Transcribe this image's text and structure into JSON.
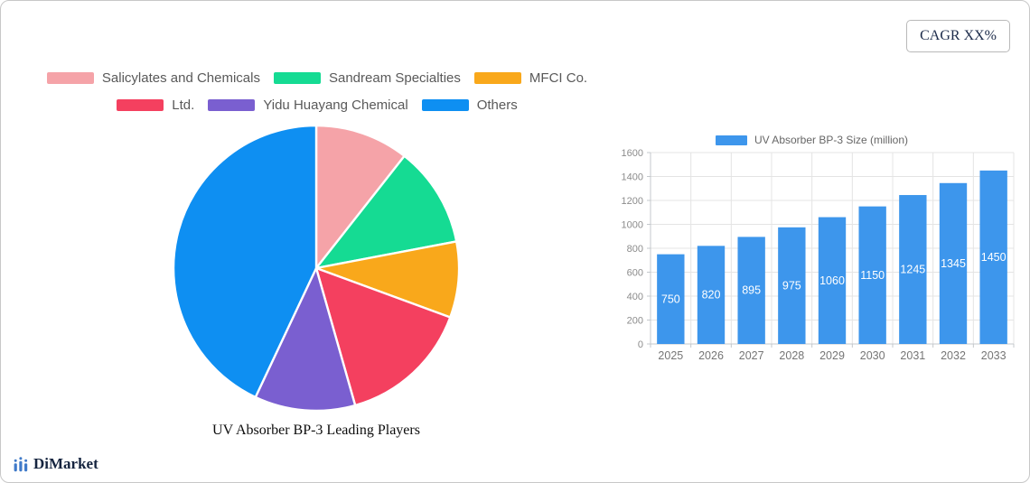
{
  "badge": {
    "cagr_label": "CAGR XX%"
  },
  "brand": {
    "name": "DiMarket"
  },
  "chart_data": [
    {
      "type": "pie",
      "title": "UV Absorber BP-3 Leading Players",
      "legend_position": "top",
      "direction": "clockwise",
      "start_angle_deg": 0,
      "labels": [
        "Salicylates and Chemicals",
        "Sandream Specialties",
        "MFCI Co.",
        "Ltd.",
        "Yidu Huayang Chemical",
        "Others"
      ],
      "values": [
        10.6,
        11.4,
        8.6,
        15.0,
        11.4,
        43.0
      ],
      "value_format": "percent-of-whole (estimated from slice angles)",
      "colors": [
        "#F5A3A8",
        "#15DB93",
        "#F9A81B",
        "#F4405F",
        "#7A5FD0",
        "#0E8FF2"
      ],
      "slice_gap_color": "#ffffff"
    },
    {
      "type": "bar",
      "series": [
        {
          "name": "UV Absorber BP-3 Size (million)",
          "values": [
            750,
            820,
            895,
            975,
            1060,
            1150,
            1245,
            1345,
            1450
          ]
        }
      ],
      "categories": [
        "2025",
        "2026",
        "2027",
        "2028",
        "2029",
        "2030",
        "2031",
        "2032",
        "2033"
      ],
      "ylim": [
        0,
        1600
      ],
      "ytick_step": 200,
      "grid": true,
      "legend_position": "top",
      "bar_color": "#3D96EC",
      "value_label_color": "#ffffff",
      "axis_color": "#c4c8cc",
      "grid_color": "#e4e4e4",
      "tick_label_color": "#8c8c8c",
      "category_label_color": "#757575"
    }
  ]
}
